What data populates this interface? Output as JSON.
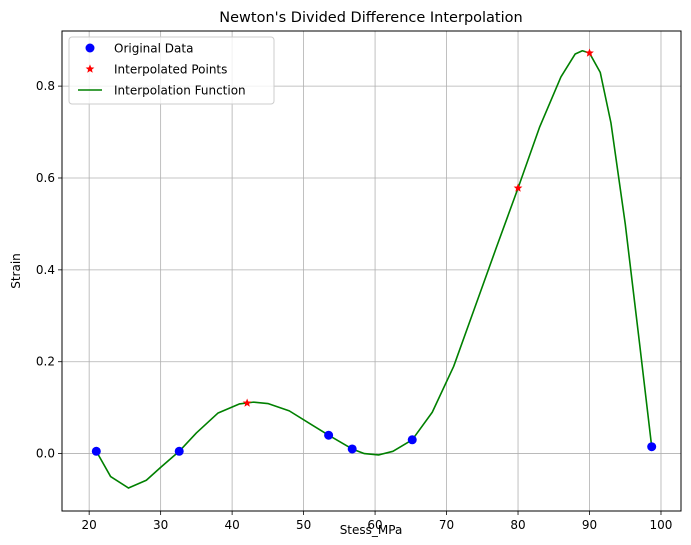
{
  "chart_data": {
    "type": "line",
    "title": "Newton's Divided Difference Interpolation",
    "xlabel": "Stess_MPa",
    "ylabel": "Strain",
    "xlim": [
      16.2,
      102.8
    ],
    "ylim": [
      -0.125,
      0.92
    ],
    "xticks": [
      20,
      30,
      40,
      50,
      60,
      70,
      80,
      90,
      100
    ],
    "yticks": [
      0.0,
      0.2,
      0.4,
      0.6,
      0.8
    ],
    "ytick_labels": [
      "0.0",
      "0.2",
      "0.4",
      "0.6",
      "0.8"
    ],
    "grid": true,
    "legend_position": "top-left",
    "series": [
      {
        "name": "Original Data",
        "kind": "scatter",
        "marker": "circle",
        "color": "#0000ff",
        "x": [
          21.0,
          32.6,
          53.5,
          56.8,
          65.2,
          98.7
        ],
        "y": [
          0.005,
          0.005,
          0.04,
          0.01,
          0.03,
          0.015
        ]
      },
      {
        "name": "Interpolated Points",
        "kind": "scatter",
        "marker": "star",
        "color": "#ff0000",
        "x": [
          42.1,
          80.0,
          90.0
        ],
        "y": [
          0.11,
          0.578,
          0.872
        ]
      },
      {
        "name": "Interpolation Function",
        "kind": "line",
        "color": "#008000",
        "x": [
          21.0,
          23.0,
          25.5,
          28.0,
          30.0,
          32.6,
          35.0,
          38.0,
          41.0,
          43.0,
          45.0,
          48.0,
          51.0,
          53.5,
          56.8,
          58.5,
          60.5,
          62.5,
          65.2,
          68.0,
          71.0,
          74.0,
          77.0,
          80.0,
          83.0,
          86.0,
          88.0,
          89.0,
          90.0,
          91.5,
          93.0,
          95.0,
          97.0,
          98.7
        ],
        "y": [
          0.005,
          -0.05,
          -0.075,
          -0.058,
          -0.03,
          0.005,
          0.045,
          0.088,
          0.108,
          0.112,
          0.109,
          0.093,
          0.064,
          0.04,
          0.01,
          0.0,
          -0.003,
          0.005,
          0.03,
          0.09,
          0.19,
          0.32,
          0.45,
          0.578,
          0.71,
          0.82,
          0.87,
          0.877,
          0.872,
          0.83,
          0.72,
          0.5,
          0.24,
          0.015
        ]
      }
    ]
  }
}
